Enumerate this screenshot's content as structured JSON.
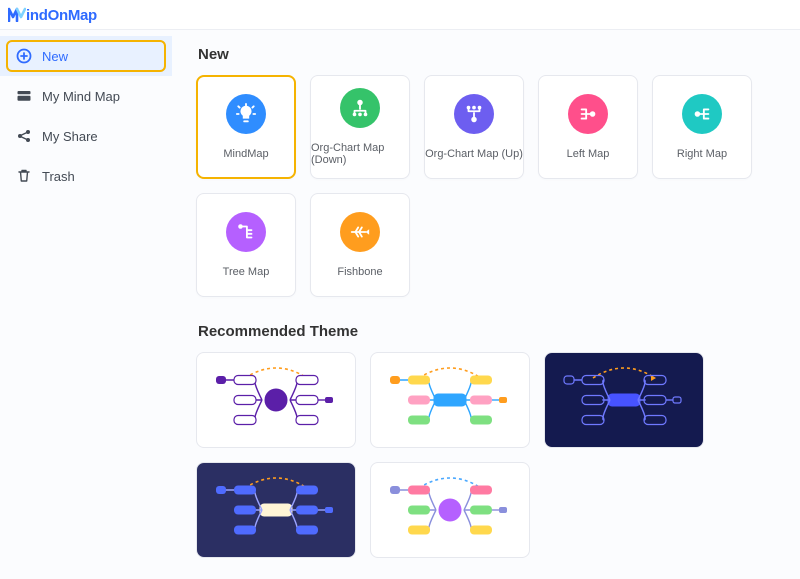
{
  "logo": {
    "brand_text": "indOnMap",
    "initial_color": "#2f6bff",
    "text_color": "#2f6bff"
  },
  "sidebar": {
    "items": [
      {
        "key": "new",
        "label": "New",
        "icon": "plus-circle",
        "active": true
      },
      {
        "key": "mymindmap",
        "label": "My Mind Map",
        "icon": "folder",
        "active": false
      },
      {
        "key": "myshare",
        "label": "My Share",
        "icon": "share",
        "active": false
      },
      {
        "key": "trash",
        "label": "Trash",
        "icon": "trash",
        "active": false
      }
    ],
    "active_highlight_color": "#f5b301",
    "active_bg": "#e8f1ff",
    "active_fg": "#2f6bff"
  },
  "sections": {
    "new_title": "New",
    "recommended_title": "Recommended Theme"
  },
  "templates": [
    {
      "key": "mindmap",
      "label": "MindMap",
      "bg": "#2f8dff",
      "glyph": "bulb",
      "highlight": true
    },
    {
      "key": "org-down",
      "label": "Org-Chart Map (Down)",
      "bg": "#35c36a",
      "glyph": "org-down",
      "highlight": false
    },
    {
      "key": "org-up",
      "label": "Org-Chart Map (Up)",
      "bg": "#6d5ef0",
      "glyph": "org-up",
      "highlight": false
    },
    {
      "key": "left-map",
      "label": "Left Map",
      "bg": "#ff4f8b",
      "glyph": "left-map",
      "highlight": false
    },
    {
      "key": "right-map",
      "label": "Right Map",
      "bg": "#1fc9c3",
      "glyph": "right-map",
      "highlight": false
    },
    {
      "key": "tree-map",
      "label": "Tree Map",
      "bg": "#b560ff",
      "glyph": "tree",
      "highlight": false
    },
    {
      "key": "fishbone",
      "label": "Fishbone",
      "bg": "#ff9d1e",
      "glyph": "fishbone",
      "highlight": false
    }
  ],
  "themes": [
    {
      "key": "theme-purple-light",
      "bg": "#ffffff",
      "center_shape": "circle",
      "center_fill": "#5b1fa8",
      "center_stroke": "#5b1fa8",
      "node_fill": "#ffffff",
      "node_stroke": "#5b1fa8",
      "link": "#5b1fa8",
      "arc": "#ff9d1e",
      "tail_fill": "#5b1fa8"
    },
    {
      "key": "theme-rainbow-bars",
      "bg": "#ffffff",
      "center_shape": "rect",
      "center_fill": "#2fa6ff",
      "center_stroke": "#2fa6ff",
      "node_stroke": "none",
      "node_fills": [
        "#ffd84d",
        "#ffa1c2",
        "#7ee081",
        "#ffd84d",
        "#ffa1c2",
        "#7ee081"
      ],
      "link": "#2fa6ff",
      "arc": "#ff9d1e",
      "tail_fill": "#ff9d1e"
    },
    {
      "key": "theme-navy-dark",
      "bg": "#141a4f",
      "center_shape": "rect",
      "center_fill": "#4753ff",
      "center_stroke": "#4753ff",
      "node_fill": "none",
      "node_stroke": "#6f79ff",
      "link": "#6f79ff",
      "arc": "#ff9d1e",
      "tail_fill": "none",
      "tail_stroke": "#6f79ff"
    },
    {
      "key": "theme-indigo-dark",
      "bg": "#2b2f63",
      "center_shape": "rect",
      "center_fill": "#fff5d6",
      "center_stroke": "#fff5d6",
      "node_stroke": "none",
      "node_fills": [
        "#4f6bff",
        "#4f6bff",
        "#4f6bff",
        "#4f6bff",
        "#4f6bff",
        "#4f6bff"
      ],
      "link": "#9aa3ff",
      "arc": "#ff9d1e",
      "tail_fill": "#4f6bff"
    },
    {
      "key": "theme-pastel-circle",
      "bg": "#ffffff",
      "center_shape": "circle",
      "center_fill": "#b560ff",
      "center_stroke": "#b560ff",
      "node_stroke": "none",
      "node_fills": [
        "#ff7aa2",
        "#7ee081",
        "#ffd84d",
        "#ff7aa2",
        "#7ee081",
        "#ffd84d"
      ],
      "link": "#8a8fdc",
      "arc": "#4aa8ff",
      "tail_fill": "#8a8fdc"
    }
  ]
}
